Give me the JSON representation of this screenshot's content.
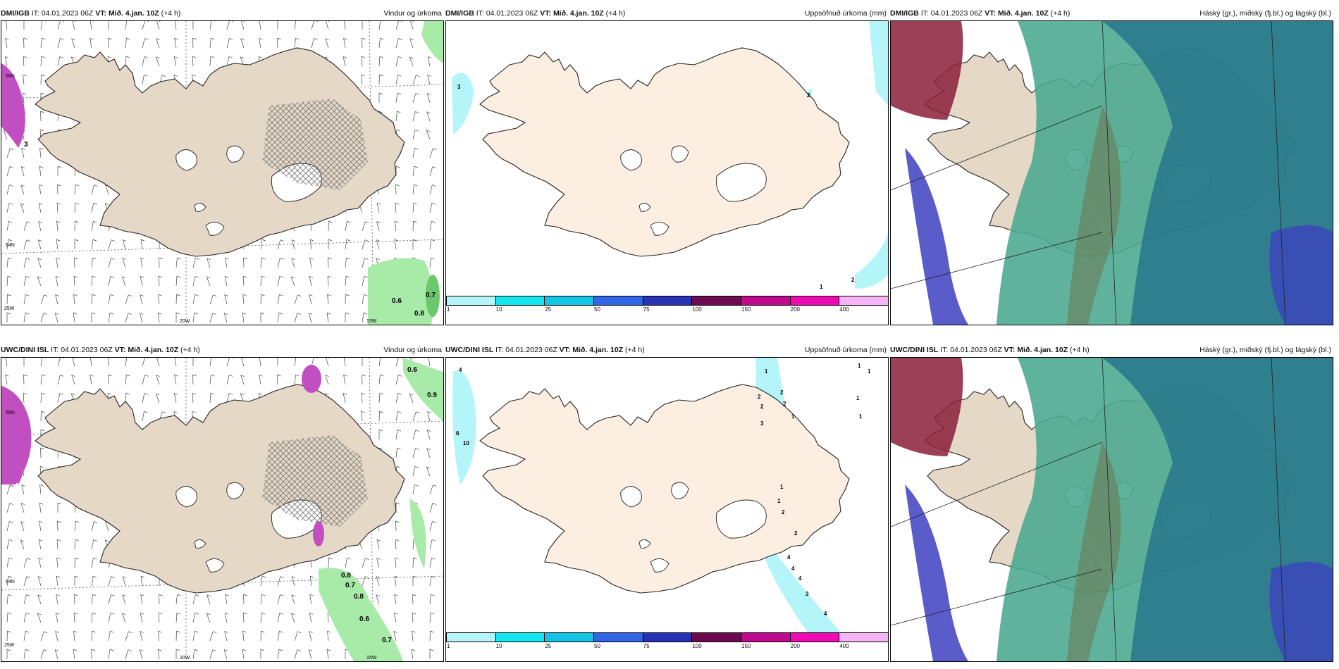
{
  "common": {
    "init_label": "IT:",
    "init_time": "04.01.2023 06Z",
    "valid_label": "VT:",
    "valid_time": "Mið. 4.jan. 10Z",
    "lead": "(+4 h)"
  },
  "rows": [
    {
      "source": "DMI/IGB"
    },
    {
      "source": "UWC/DINI ISL"
    }
  ],
  "titles": {
    "wind": "Vindur og úrkoma",
    "precip": "Uppsöfnuð úrkoma (mm)",
    "cloud": "Háský (gr.), miðský (fj.bl.) og lágský (bl.)"
  },
  "axis_labels": {
    "lat_66": "66N",
    "lat_64": "64N",
    "lon_20": "20W",
    "lon_15": "15W",
    "lon_25": "25W"
  },
  "colorbar": {
    "ticks": [
      "1",
      "10",
      "25",
      "50",
      "75",
      "100",
      "150",
      "200",
      "400"
    ],
    "colors": [
      "#b4f5fa",
      "#14e6f0",
      "#14c3e6",
      "#3264e6",
      "#2832b4",
      "#6e0a50",
      "#be0a8c",
      "#f00ab4",
      "#f5b4f5"
    ]
  },
  "wind_maxima": {
    "top": [
      "0.6",
      "0.8",
      "0.7",
      "3"
    ],
    "bottom": [
      "0.6",
      "0.9",
      "0.8",
      "0.7",
      "0.8",
      "0.6",
      "0.7"
    ]
  },
  "precip_labels": {
    "top": [
      "3",
      "2",
      "2",
      "1"
    ],
    "bottom": [
      "4",
      "6",
      "10",
      "1",
      "2",
      "2",
      "2",
      "2",
      "3",
      "1",
      "1",
      "1",
      "1",
      "1",
      "1",
      "1",
      "2",
      "2",
      "4",
      "4",
      "4",
      "3",
      "4"
    ]
  },
  "colors": {
    "land": "#e6d8c6",
    "land_precip": "#fcefe2",
    "rain_green": "#a8eba8",
    "snow_purple": "#c24fc2",
    "high_cloud": "#49a890",
    "mid_cloud": "#1f6e8a",
    "low_cloud": "#3d3fbf"
  }
}
